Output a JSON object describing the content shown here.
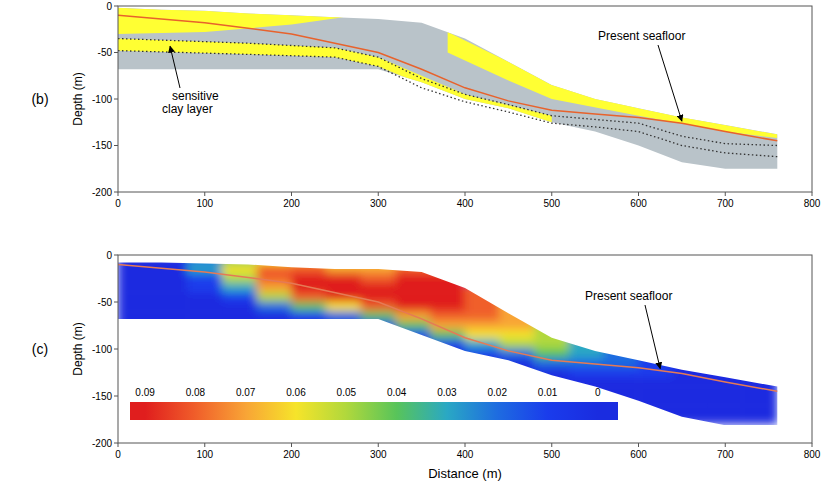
{
  "chart_data": [
    {
      "type": "section",
      "title": "(b)",
      "ylabel": "Depth (m)",
      "xlim": [
        0,
        800
      ],
      "ylim": [
        -200,
        0
      ],
      "xticks": [
        0,
        100,
        200,
        300,
        400,
        500,
        600,
        700,
        800
      ],
      "yticks": [
        -200,
        -150,
        -100,
        -50,
        0
      ],
      "domain": {
        "color": "#b9c3c9",
        "x": [
          0,
          50,
          100,
          150,
          200,
          250,
          300,
          350,
          400,
          450,
          500,
          550,
          600,
          650,
          700,
          760
        ],
        "top": [
          -2,
          -4,
          -5,
          -8,
          -10,
          -12,
          -14,
          -18,
          -35,
          -60,
          -85,
          -100,
          -110,
          -120,
          -128,
          -138
        ],
        "bottom": [
          -68,
          -68,
          -68,
          -68,
          -68,
          -68,
          -68,
          -82,
          -100,
          -110,
          -125,
          -135,
          -150,
          -168,
          -175,
          -175
        ]
      },
      "zones": [
        {
          "color": "#ffff33",
          "x": [
            0,
            100,
            200,
            260
          ],
          "top": [
            -2,
            -5,
            -10,
            -12
          ],
          "bottom": [
            -30,
            -28,
            -20,
            -12
          ]
        },
        {
          "color": "#ffff33",
          "x": [
            0,
            150,
            250,
            300,
            400,
            500
          ],
          "top": [
            -35,
            -40,
            -45,
            -55,
            -95,
            -118
          ],
          "bottom": [
            -48,
            -52,
            -55,
            -65,
            -103,
            -126
          ]
        },
        {
          "color": "#ffff33",
          "x": [
            380,
            450,
            500,
            600,
            700,
            760
          ],
          "top": [
            -28,
            -60,
            -85,
            -110,
            -128,
            -138
          ],
          "bottom": [
            -50,
            -80,
            -100,
            -118,
            -135,
            -142
          ]
        }
      ],
      "clay_layer": {
        "label": "sensitive clay layer",
        "line_style": "dotted",
        "color": "#333333",
        "x": [
          0,
          150,
          250,
          300,
          350,
          400,
          450,
          500,
          550,
          600,
          650,
          700,
          760
        ],
        "top": [
          -35,
          -40,
          -45,
          -55,
          -78,
          -95,
          -106,
          -118,
          -122,
          -126,
          -140,
          -148,
          -150
        ],
        "bottom": [
          -48,
          -52,
          -55,
          -65,
          -88,
          -103,
          -114,
          -126,
          -130,
          -135,
          -150,
          -158,
          -162
        ]
      },
      "seafloor": {
        "label": "Present seafloor",
        "color": "#e8622c",
        "x": [
          0,
          100,
          200,
          300,
          350,
          400,
          450,
          500,
          550,
          600,
          650,
          700,
          760
        ],
        "values": [
          -10,
          -18,
          -30,
          -50,
          -68,
          -88,
          -102,
          -112,
          -116,
          -120,
          -126,
          -135,
          -145
        ]
      }
    },
    {
      "type": "heatmap",
      "title": "(c)",
      "ylabel": "Depth (m)",
      "xlabel": "Distance (m)",
      "xlim": [
        0,
        800
      ],
      "ylim": [
        -200,
        0
      ],
      "xticks": [
        0,
        100,
        200,
        300,
        400,
        500,
        600,
        700,
        800
      ],
      "yticks": [
        -200,
        -150,
        -100,
        -50,
        0
      ],
      "domain": {
        "x": [
          0,
          50,
          100,
          150,
          200,
          250,
          300,
          350,
          400,
          450,
          500,
          550,
          600,
          650,
          700,
          760
        ],
        "top": [
          -8,
          -8,
          -9,
          -10,
          -13,
          -15,
          -15,
          -18,
          -35,
          -62,
          -88,
          -102,
          -112,
          -122,
          -130,
          -140
        ],
        "bottom": [
          -68,
          -68,
          -68,
          -68,
          -68,
          -68,
          -68,
          -85,
          -102,
          -112,
          -128,
          -140,
          -155,
          -172,
          -181,
          -181
        ]
      },
      "x_edges": [
        0,
        40,
        80,
        120,
        160,
        200,
        240,
        280,
        320,
        360,
        400,
        440,
        480,
        520,
        560,
        600,
        640,
        680,
        720,
        760
      ],
      "y_edges": [
        0,
        -10,
        -20,
        -30,
        -40,
        -50,
        -60,
        -70,
        -80,
        -90,
        -100,
        -110,
        -120,
        -130,
        -140,
        -150,
        -160,
        -170,
        -180
      ],
      "cells": [
        [
          0,
          0,
          0.02,
          0.04,
          0.06,
          0.07,
          0.06,
          0.06,
          0.07,
          0,
          0,
          0,
          0,
          0,
          0,
          0,
          0,
          0,
          0
        ],
        [
          0,
          0,
          0.03,
          0.06,
          0.08,
          0.08,
          0.07,
          0.07,
          0.08,
          0.08,
          0,
          0,
          0,
          0,
          0,
          0,
          0,
          0,
          0
        ],
        [
          0,
          0,
          0.01,
          0.05,
          0.08,
          0.09,
          0.09,
          0.08,
          0.09,
          0.09,
          0,
          0,
          0,
          0,
          0,
          0,
          0,
          0,
          0
        ],
        [
          0,
          0,
          0.01,
          0.03,
          0.07,
          0.09,
          0.09,
          0.09,
          0.09,
          0.09,
          0.08,
          0,
          0,
          0,
          0,
          0,
          0,
          0,
          0
        ],
        [
          0,
          0,
          0,
          0.01,
          0.05,
          0.08,
          0.09,
          0.09,
          0.09,
          0.09,
          0.08,
          0.05,
          0,
          0,
          0,
          0,
          0,
          0,
          0
        ],
        [
          0,
          0,
          0,
          0,
          0.02,
          0.04,
          0.06,
          0.08,
          0.09,
          0.09,
          0.08,
          0.07,
          0.02,
          0,
          0,
          0,
          0,
          0,
          0
        ],
        [
          0,
          0,
          0,
          0,
          0,
          0.01,
          0.02,
          0.04,
          0.07,
          0.08,
          0.08,
          0.07,
          0.04,
          0,
          0,
          0,
          0,
          0,
          0
        ],
        [
          0,
          0,
          0,
          0,
          0,
          0,
          0,
          0.01,
          0.04,
          0.07,
          0.07,
          0.07,
          0.05,
          0.01,
          0,
          0,
          0,
          0,
          0
        ],
        [
          0,
          0,
          0,
          0,
          0,
          0,
          0,
          0,
          0.01,
          0.04,
          0.06,
          0.06,
          0.05,
          0.03,
          0,
          0,
          0,
          0,
          0
        ],
        [
          0,
          0,
          0,
          0,
          0,
          0,
          0,
          0,
          0,
          0.01,
          0.03,
          0.05,
          0.05,
          0.03,
          0.02,
          0,
          0,
          0,
          0
        ],
        [
          0,
          0,
          0,
          0,
          0,
          0,
          0,
          0,
          0,
          0,
          0.01,
          0.02,
          0.04,
          0.03,
          0.02,
          0.01,
          0,
          0,
          0
        ],
        [
          0,
          0,
          0,
          0,
          0,
          0,
          0,
          0,
          0,
          0,
          0,
          0,
          0.02,
          0.02,
          0.02,
          0.01,
          0,
          0,
          0
        ],
        [
          0,
          0,
          0,
          0,
          0,
          0,
          0,
          0,
          0,
          0,
          0,
          0,
          0,
          0.01,
          0.01,
          0.01,
          0,
          0,
          0
        ],
        [
          0,
          0,
          0,
          0,
          0,
          0,
          0,
          0,
          0,
          0,
          0,
          0,
          0,
          0,
          0,
          0,
          0,
          0,
          0
        ],
        [
          0,
          0,
          0,
          0,
          0,
          0,
          0,
          0,
          0,
          0,
          0,
          0,
          0,
          0,
          0,
          0,
          0,
          0,
          0
        ],
        [
          0,
          0,
          0,
          0,
          0,
          0,
          0,
          0,
          0,
          0,
          0,
          0,
          0,
          0,
          0,
          0,
          0,
          0,
          0
        ],
        [
          0,
          0,
          0,
          0,
          0,
          0,
          0,
          0,
          0,
          0,
          0,
          0,
          0,
          0,
          0,
          0,
          0,
          0,
          0
        ],
        [
          0,
          0,
          0,
          0,
          0,
          0,
          0,
          0,
          0,
          0,
          0,
          0,
          0,
          0,
          0,
          0,
          0,
          0,
          0
        ]
      ],
      "colorbar_range": [
        0.093,
        -0.004
      ],
      "colorbar_ticks": [
        0.09,
        0.08,
        0.07,
        0.06,
        0.05,
        0.04,
        0.03,
        0.02,
        0.01,
        0
      ],
      "seafloor": {
        "label": "Present seafloor",
        "color": "#e57a55",
        "x": [
          0,
          100,
          200,
          300,
          350,
          400,
          450,
          500,
          550,
          600,
          650,
          700,
          760
        ],
        "values": [
          -10,
          -18,
          -30,
          -50,
          -68,
          -88,
          -102,
          -112,
          -116,
          -120,
          -126,
          -135,
          -145
        ]
      }
    }
  ]
}
